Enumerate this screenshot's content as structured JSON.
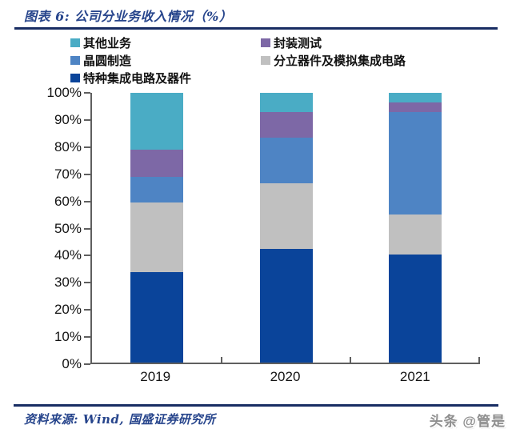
{
  "figure": {
    "title": "图表 6:  公司分业务收入情况（%）",
    "source": "资料来源:  Wind,  国盛证券研究所",
    "watermark": "头条 @管是"
  },
  "colors": {
    "title_navy": "#27458c",
    "rule_navy": "#182d63",
    "axis_gray": "#5f5f5f",
    "label_text": "#141414"
  },
  "chart_data": {
    "type": "bar",
    "stacked": true,
    "title": "公司分业务收入情况（%）",
    "categories": [
      "2019",
      "2020",
      "2021"
    ],
    "series": [
      {
        "name": "特种集成电路及器件",
        "color": "#0a449a",
        "values": [
          33.5,
          42,
          40
        ]
      },
      {
        "name": "分立器件及模拟集成电路",
        "color": "#c0c0c0",
        "values": [
          26,
          24.5,
          15
        ]
      },
      {
        "name": "晶圆制造",
        "color": "#4e84c4",
        "values": [
          9.5,
          17,
          38
        ]
      },
      {
        "name": "封装测试",
        "color": "#7d68a6",
        "values": [
          10,
          9.5,
          3.5
        ]
      },
      {
        "name": "其他业务",
        "color": "#4aacc5",
        "values": [
          21,
          7,
          3.5
        ]
      }
    ],
    "legend_order": [
      "其他业务",
      "封装测试",
      "晶圆制造",
      "分立器件及模拟集成电路",
      "特种集成电路及器件"
    ],
    "legend_position": "top-left",
    "ylim": [
      0,
      100
    ],
    "yticks": [
      "100%",
      "90%",
      "80%",
      "70%",
      "60%",
      "50%",
      "40%",
      "30%",
      "20%",
      "10%",
      "0%"
    ],
    "xlabel": "",
    "ylabel": "",
    "grid": false
  }
}
